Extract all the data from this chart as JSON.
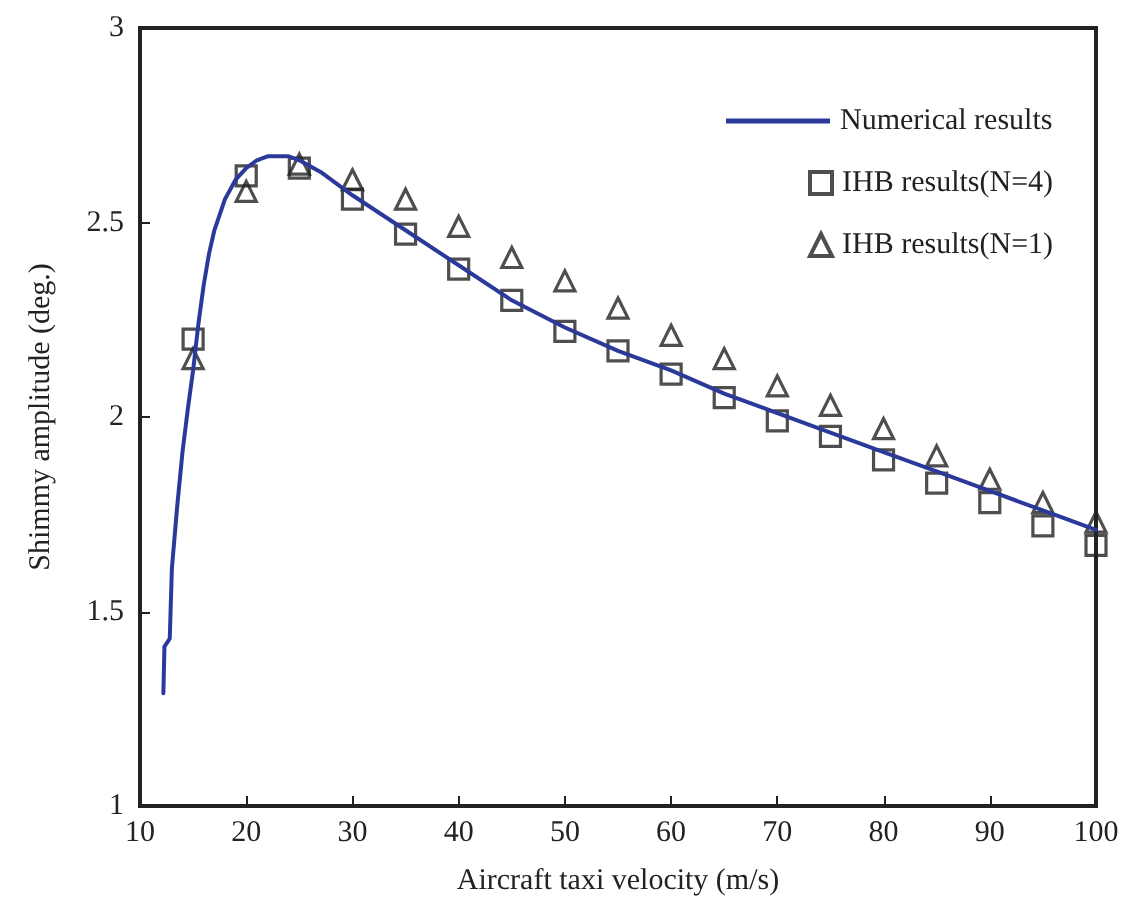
{
  "chart_data": {
    "type": "line",
    "xlabel": "Aircraft taxi velocity (m/s)",
    "ylabel": "Shimmy amplitude (deg.)",
    "xlim": [
      10,
      100
    ],
    "xticks": [
      10,
      20,
      30,
      40,
      50,
      60,
      70,
      80,
      90,
      100
    ],
    "ylim": [
      1,
      3
    ],
    "yticks": [
      1,
      1.5,
      2,
      2.5,
      3
    ],
    "grid": false,
    "legend": "top right",
    "series": [
      {
        "name": "Numerical results",
        "type": "line",
        "color": "#2b3a9a",
        "marker": "none",
        "x": [
          12.2,
          12.3,
          12.8,
          13,
          13.5,
          14,
          14.5,
          15,
          15.5,
          16,
          16.5,
          17,
          18,
          19,
          20,
          21,
          22,
          24,
          25,
          27,
          30,
          35,
          40,
          45,
          50,
          55,
          60,
          65,
          70,
          75,
          80,
          85,
          90,
          95,
          100
        ],
        "values": [
          1.29,
          1.41,
          1.43,
          1.61,
          1.77,
          1.91,
          2.02,
          2.12,
          2.24,
          2.34,
          2.42,
          2.48,
          2.56,
          2.61,
          2.64,
          2.66,
          2.67,
          2.67,
          2.66,
          2.63,
          2.57,
          2.48,
          2.39,
          2.3,
          2.23,
          2.17,
          2.12,
          2.06,
          2.01,
          1.96,
          1.91,
          1.86,
          1.81,
          1.76,
          1.71
        ]
      },
      {
        "name": "IHB results(N=4)",
        "type": "scatter",
        "color": "#222222",
        "marker": "square",
        "x": [
          15,
          20,
          25,
          30,
          35,
          40,
          45,
          50,
          55,
          60,
          65,
          70,
          75,
          80,
          85,
          90,
          95,
          100
        ],
        "values": [
          2.2,
          2.62,
          2.64,
          2.56,
          2.47,
          2.38,
          2.3,
          2.22,
          2.17,
          2.11,
          2.05,
          1.99,
          1.95,
          1.89,
          1.83,
          1.78,
          1.72,
          1.67
        ]
      },
      {
        "name": "IHB results(N=1)",
        "type": "scatter",
        "color": "#222222",
        "marker": "triangle",
        "x": [
          15,
          20,
          25,
          30,
          35,
          40,
          45,
          50,
          55,
          60,
          65,
          70,
          75,
          80,
          85,
          90,
          95,
          100
        ],
        "values": [
          2.15,
          2.58,
          2.65,
          2.61,
          2.56,
          2.49,
          2.41,
          2.35,
          2.28,
          2.21,
          2.15,
          2.08,
          2.03,
          1.97,
          1.9,
          1.84,
          1.78,
          1.73
        ]
      }
    ]
  }
}
